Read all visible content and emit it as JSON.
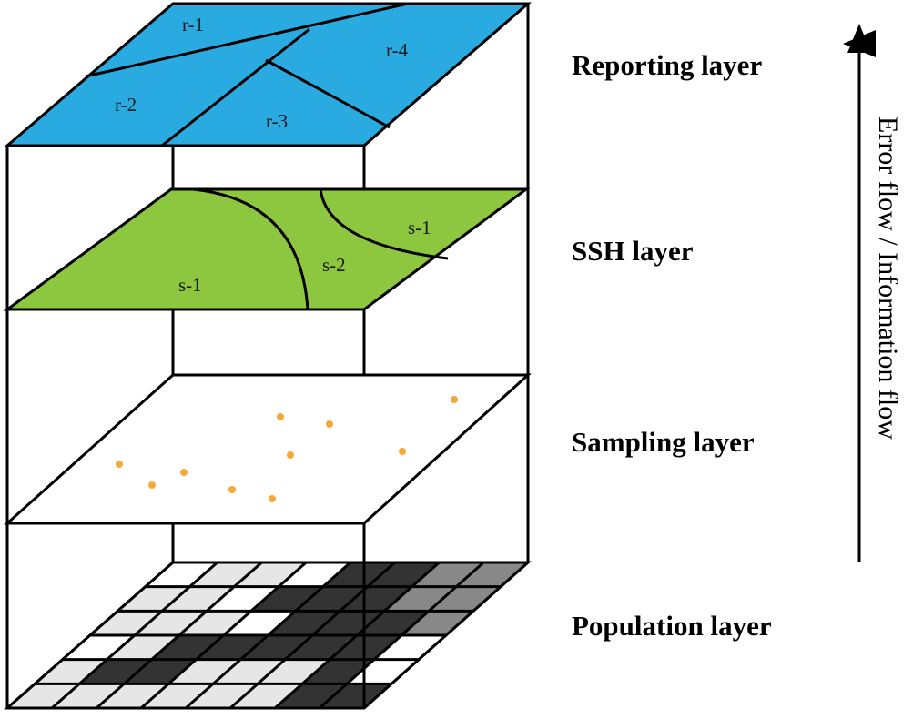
{
  "layers": {
    "reporting": {
      "label": "Reporting layer",
      "fill": "#29abe2",
      "regions": [
        "r-1",
        "r-2",
        "r-3",
        "r-4"
      ]
    },
    "ssh": {
      "label": "SSH layer",
      "fill": "#8dc63f",
      "regions": [
        "s-1",
        "s-2",
        "s-1"
      ]
    },
    "sampling": {
      "label": "Sampling layer",
      "point_color": "#f7a837",
      "point_count": 10
    },
    "population": {
      "label": "Population layer",
      "colors": {
        "light": "#e6e6e6",
        "dark": "#333333",
        "mid": "#888888",
        "white": "#ffffff"
      }
    }
  },
  "flow_label": "Error flow / Information flow",
  "line_color": "#000000"
}
